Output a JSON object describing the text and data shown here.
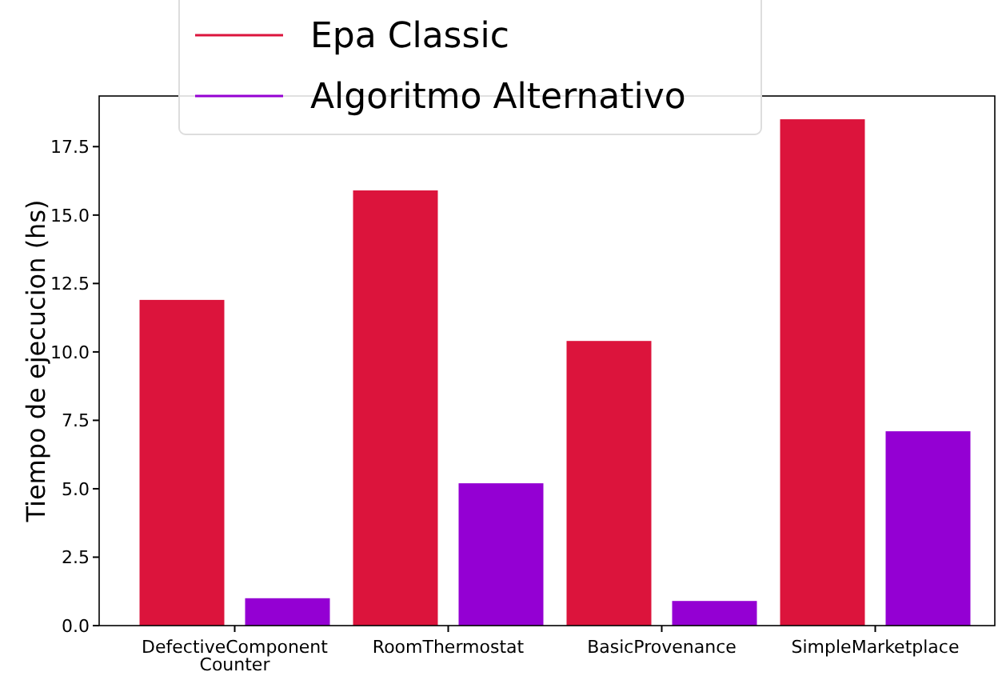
{
  "chart_data": {
    "type": "bar",
    "ylabel": "Tiempo de ejecucion (hs)",
    "categories": [
      "DefectiveComponent\nCounter",
      "RoomThermostat",
      "BasicProvenance",
      "SimpleMarketplace"
    ],
    "series": [
      {
        "name": "Epa Classic",
        "color": "#dc143c",
        "values": [
          11.9,
          15.9,
          10.4,
          18.5
        ]
      },
      {
        "name": "Algoritmo Alternativo",
        "color": "#9400d3",
        "values": [
          1.0,
          5.2,
          0.9,
          7.1
        ]
      }
    ],
    "ylim": [
      0,
      19.35
    ],
    "yticks": [
      {
        "value": 0,
        "label": "0.0"
      },
      {
        "value": 2.5,
        "label": "2.5"
      },
      {
        "value": 5,
        "label": "5.0"
      },
      {
        "value": 7.5,
        "label": "7.5"
      },
      {
        "value": 10,
        "label": "10.0"
      },
      {
        "value": 12.5,
        "label": "12.5"
      },
      {
        "value": 15,
        "label": "15.0"
      },
      {
        "value": 17.5,
        "label": "17.5"
      }
    ],
    "grid": false,
    "legend": "top"
  }
}
